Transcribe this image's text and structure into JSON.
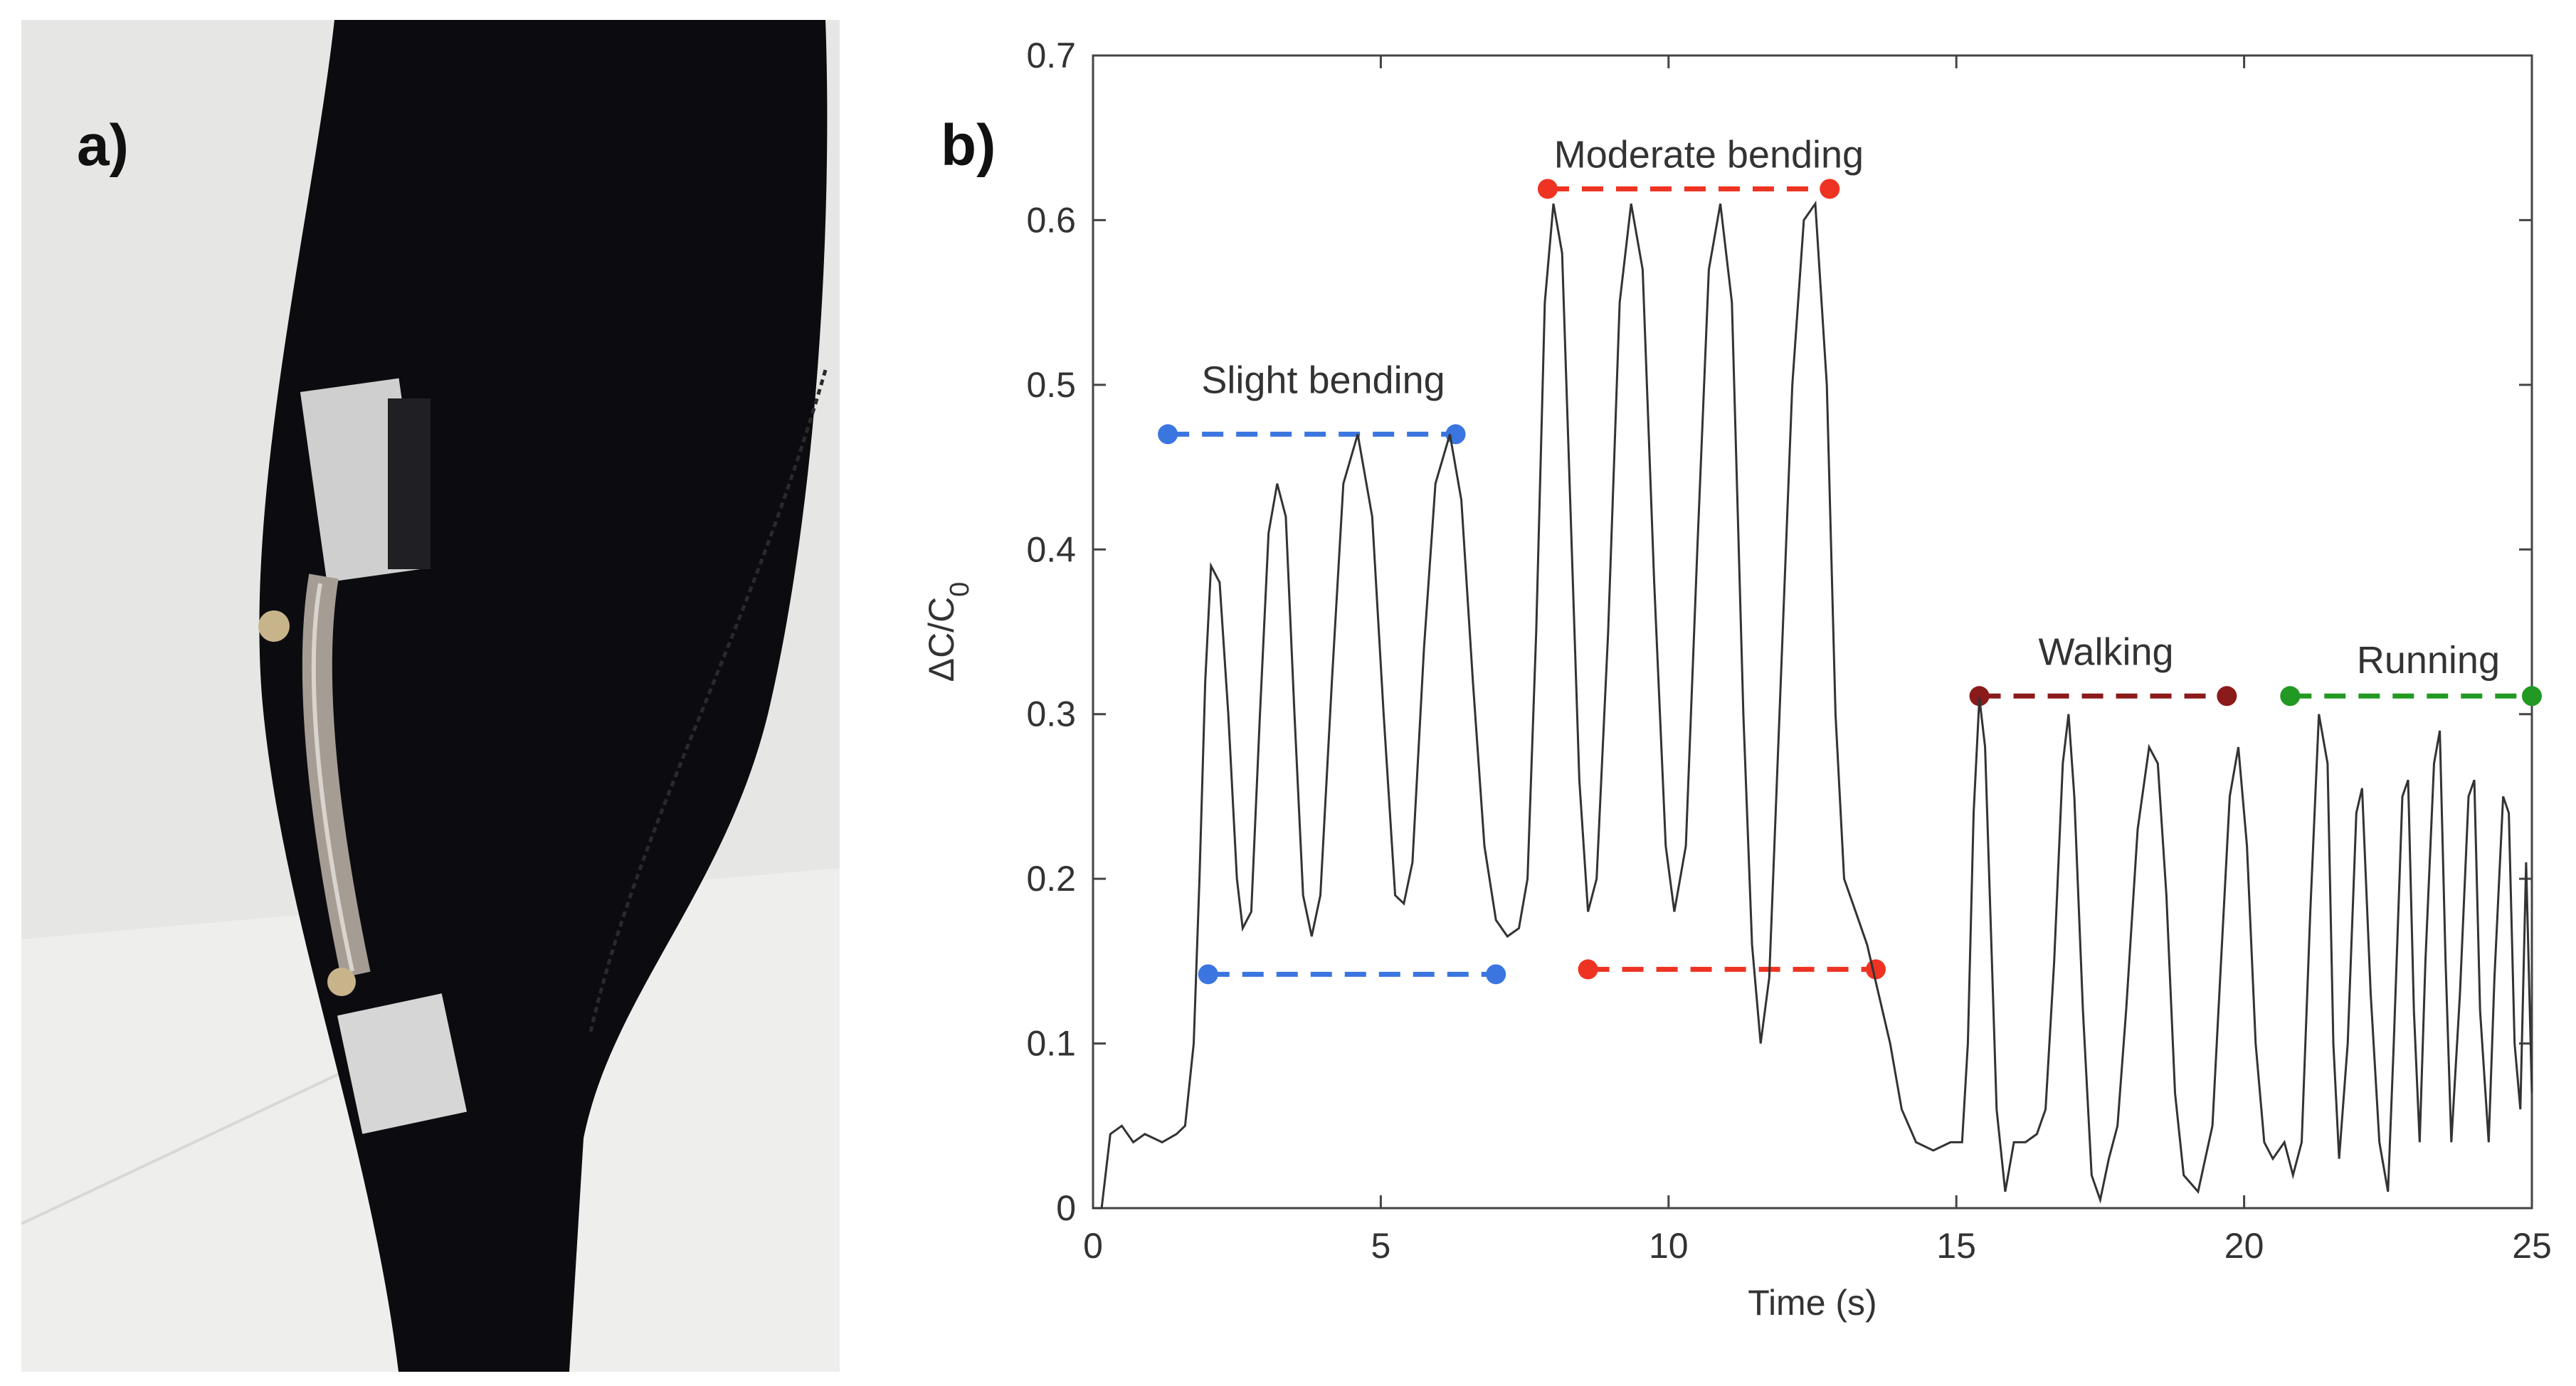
{
  "panel_a": {
    "label": "a)"
  },
  "panel_b": {
    "label": "b)"
  },
  "chart_data": {
    "type": "line",
    "title": "",
    "xlabel": "Time (s)",
    "ylabel_main": "ΔC/C",
    "ylabel_sub": "0",
    "xlim": [
      0,
      25
    ],
    "ylim": [
      0,
      0.7
    ],
    "xticks": [
      0,
      5,
      10,
      15,
      20,
      25
    ],
    "yticks": [
      0,
      0.1,
      0.2,
      0.3,
      0.4,
      0.5,
      0.6,
      0.7
    ],
    "series": [
      {
        "name": "ΔC/C0",
        "color": "#333333",
        "points": [
          [
            0,
            0.0
          ],
          [
            0.15,
            0.0
          ],
          [
            0.3,
            0.045
          ],
          [
            0.5,
            0.05
          ],
          [
            0.7,
            0.04
          ],
          [
            0.9,
            0.045
          ],
          [
            1.2,
            0.04
          ],
          [
            1.45,
            0.045
          ],
          [
            1.6,
            0.05
          ],
          [
            1.75,
            0.1
          ],
          [
            1.85,
            0.2
          ],
          [
            1.95,
            0.32
          ],
          [
            2.05,
            0.39
          ],
          [
            2.2,
            0.38
          ],
          [
            2.35,
            0.3
          ],
          [
            2.5,
            0.2
          ],
          [
            2.6,
            0.17
          ],
          [
            2.75,
            0.18
          ],
          [
            2.9,
            0.3
          ],
          [
            3.05,
            0.41
          ],
          [
            3.2,
            0.44
          ],
          [
            3.35,
            0.42
          ],
          [
            3.5,
            0.3
          ],
          [
            3.65,
            0.19
          ],
          [
            3.8,
            0.165
          ],
          [
            3.95,
            0.19
          ],
          [
            4.15,
            0.32
          ],
          [
            4.35,
            0.44
          ],
          [
            4.6,
            0.47
          ],
          [
            4.85,
            0.42
          ],
          [
            5.05,
            0.3
          ],
          [
            5.25,
            0.19
          ],
          [
            5.4,
            0.185
          ],
          [
            5.55,
            0.21
          ],
          [
            5.75,
            0.34
          ],
          [
            5.95,
            0.44
          ],
          [
            6.2,
            0.47
          ],
          [
            6.4,
            0.43
          ],
          [
            6.6,
            0.32
          ],
          [
            6.8,
            0.22
          ],
          [
            7.0,
            0.175
          ],
          [
            7.2,
            0.165
          ],
          [
            7.4,
            0.17
          ],
          [
            7.55,
            0.2
          ],
          [
            7.7,
            0.35
          ],
          [
            7.85,
            0.55
          ],
          [
            8.0,
            0.61
          ],
          [
            8.15,
            0.58
          ],
          [
            8.3,
            0.42
          ],
          [
            8.45,
            0.26
          ],
          [
            8.6,
            0.18
          ],
          [
            8.75,
            0.2
          ],
          [
            8.95,
            0.35
          ],
          [
            9.15,
            0.55
          ],
          [
            9.35,
            0.61
          ],
          [
            9.55,
            0.57
          ],
          [
            9.75,
            0.38
          ],
          [
            9.95,
            0.22
          ],
          [
            10.1,
            0.18
          ],
          [
            10.3,
            0.22
          ],
          [
            10.5,
            0.4
          ],
          [
            10.7,
            0.57
          ],
          [
            10.9,
            0.61
          ],
          [
            11.1,
            0.55
          ],
          [
            11.3,
            0.3
          ],
          [
            11.45,
            0.16
          ],
          [
            11.6,
            0.1
          ],
          [
            11.75,
            0.14
          ],
          [
            11.95,
            0.32
          ],
          [
            12.15,
            0.5
          ],
          [
            12.35,
            0.6
          ],
          [
            12.55,
            0.61
          ],
          [
            12.75,
            0.5
          ],
          [
            12.9,
            0.3
          ],
          [
            13.05,
            0.2
          ],
          [
            13.25,
            0.18
          ],
          [
            13.45,
            0.16
          ],
          [
            13.65,
            0.13
          ],
          [
            13.85,
            0.1
          ],
          [
            14.05,
            0.06
          ],
          [
            14.3,
            0.04
          ],
          [
            14.6,
            0.035
          ],
          [
            14.9,
            0.04
          ],
          [
            15.1,
            0.04
          ],
          [
            15.2,
            0.1
          ],
          [
            15.3,
            0.24
          ],
          [
            15.4,
            0.31
          ],
          [
            15.5,
            0.28
          ],
          [
            15.6,
            0.17
          ],
          [
            15.7,
            0.06
          ],
          [
            15.85,
            0.01
          ],
          [
            16.0,
            0.04
          ],
          [
            16.2,
            0.04
          ],
          [
            16.4,
            0.045
          ],
          [
            16.55,
            0.06
          ],
          [
            16.7,
            0.15
          ],
          [
            16.85,
            0.27
          ],
          [
            16.95,
            0.3
          ],
          [
            17.05,
            0.25
          ],
          [
            17.2,
            0.12
          ],
          [
            17.35,
            0.02
          ],
          [
            17.5,
            0.005
          ],
          [
            17.65,
            0.03
          ],
          [
            17.8,
            0.05
          ],
          [
            17.95,
            0.12
          ],
          [
            18.15,
            0.23
          ],
          [
            18.35,
            0.28
          ],
          [
            18.5,
            0.27
          ],
          [
            18.65,
            0.19
          ],
          [
            18.8,
            0.07
          ],
          [
            18.95,
            0.02
          ],
          [
            19.2,
            0.01
          ],
          [
            19.45,
            0.05
          ],
          [
            19.6,
            0.15
          ],
          [
            19.75,
            0.25
          ],
          [
            19.9,
            0.28
          ],
          [
            20.05,
            0.22
          ],
          [
            20.2,
            0.1
          ],
          [
            20.35,
            0.04
          ],
          [
            20.5,
            0.03
          ],
          [
            20.7,
            0.04
          ],
          [
            20.85,
            0.02
          ],
          [
            21.0,
            0.04
          ],
          [
            21.15,
            0.18
          ],
          [
            21.3,
            0.3
          ],
          [
            21.45,
            0.27
          ],
          [
            21.55,
            0.1
          ],
          [
            21.65,
            0.03
          ],
          [
            21.8,
            0.1
          ],
          [
            21.95,
            0.24
          ],
          [
            22.05,
            0.255
          ],
          [
            22.2,
            0.13
          ],
          [
            22.35,
            0.04
          ],
          [
            22.5,
            0.01
          ],
          [
            22.6,
            0.1
          ],
          [
            22.75,
            0.25
          ],
          [
            22.85,
            0.26
          ],
          [
            22.95,
            0.12
          ],
          [
            23.05,
            0.04
          ],
          [
            23.15,
            0.15
          ],
          [
            23.3,
            0.27
          ],
          [
            23.4,
            0.29
          ],
          [
            23.5,
            0.15
          ],
          [
            23.6,
            0.04
          ],
          [
            23.75,
            0.13
          ],
          [
            23.9,
            0.25
          ],
          [
            24.0,
            0.26
          ],
          [
            24.1,
            0.12
          ],
          [
            24.25,
            0.04
          ],
          [
            24.35,
            0.14
          ],
          [
            24.5,
            0.25
          ],
          [
            24.6,
            0.24
          ],
          [
            24.7,
            0.1
          ],
          [
            24.8,
            0.06
          ],
          [
            24.9,
            0.21
          ],
          [
            25.0,
            0.07
          ]
        ]
      }
    ],
    "annotations": [
      {
        "text": "Slight bending",
        "x": 4.0,
        "y": 0.495,
        "color": "#333333"
      },
      {
        "text": "Moderate bending",
        "x": 10.7,
        "y": 0.632,
        "color": "#333333"
      },
      {
        "text": "Walking",
        "x": 17.6,
        "y": 0.33,
        "color": "#333333"
      },
      {
        "text": "Running",
        "x": 23.2,
        "y": 0.325,
        "color": "#333333"
      }
    ],
    "reference_lines": [
      {
        "name": "slight-bending-upper",
        "x1": 1.3,
        "x2": 6.3,
        "y": 0.47,
        "color": "#3a75e0"
      },
      {
        "name": "slight-bending-lower",
        "x1": 2.0,
        "x2": 7.0,
        "y": 0.142,
        "color": "#3a75e0"
      },
      {
        "name": "moderate-bending-upper",
        "x1": 7.9,
        "x2": 12.8,
        "y": 0.619,
        "color": "#ee3322"
      },
      {
        "name": "moderate-bending-lower",
        "x1": 8.6,
        "x2": 13.6,
        "y": 0.145,
        "color": "#ee3322"
      },
      {
        "name": "walking-level",
        "x1": 15.4,
        "x2": 19.7,
        "y": 0.311,
        "color": "#8b1a1a"
      },
      {
        "name": "running-level",
        "x1": 20.8,
        "x2": 25.0,
        "y": 0.311,
        "color": "#229922"
      }
    ]
  }
}
